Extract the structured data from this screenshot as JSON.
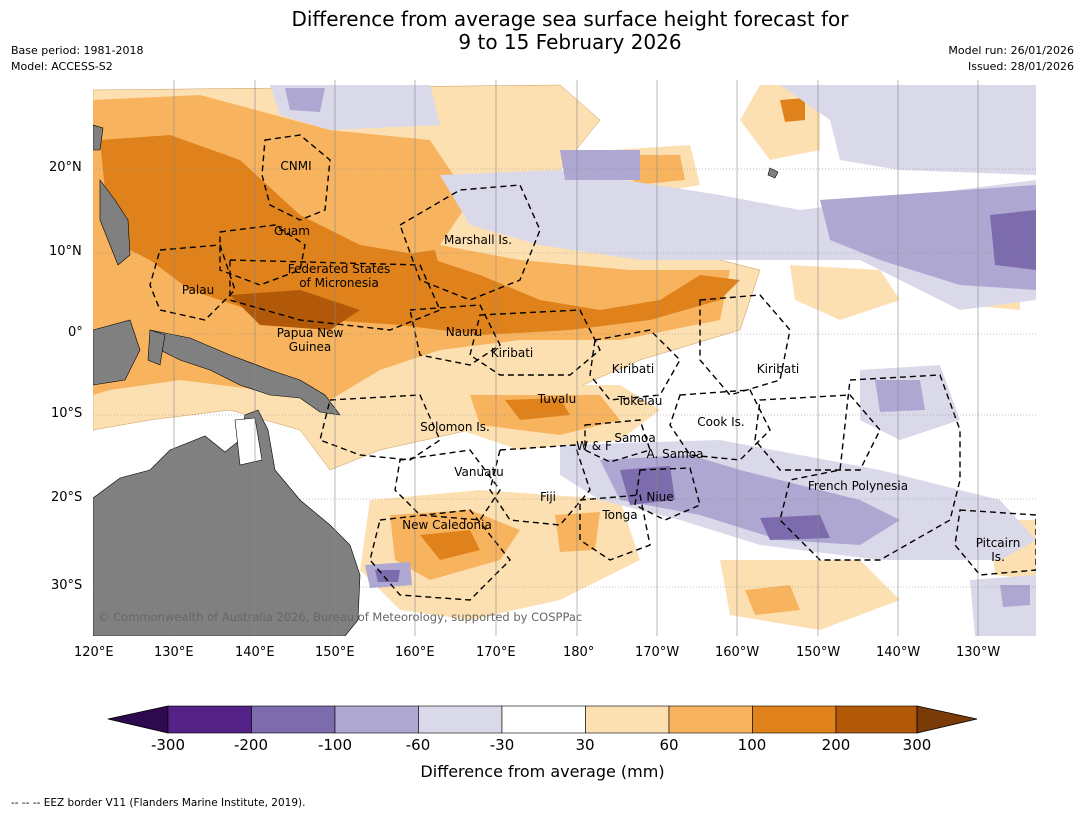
{
  "title_line1": "Difference from average sea surface height forecast for",
  "title_line2": "9 to 15 February 2026",
  "base_period": "Base period: 1981-2018",
  "model": "Model: ACCESS-S2",
  "model_run": "Model run: 26/01/2026",
  "issued": "Issued: 28/01/2026",
  "lat_labels": [
    "20°N",
    "10°N",
    "0°",
    "10°S",
    "20°S",
    "30°S"
  ],
  "lon_labels": [
    "120°E",
    "130°E",
    "140°E",
    "150°E",
    "160°E",
    "170°E",
    "180°",
    "170°W",
    "160°W",
    "150°W",
    "140°W",
    "130°W"
  ],
  "places": [
    {
      "name": "CNMI"
    },
    {
      "name": "Guam"
    },
    {
      "name": "Marshall Is."
    },
    {
      "name": "Federated States\nof Micronesia"
    },
    {
      "name": "Palau"
    },
    {
      "name": "Papua New\nGuinea"
    },
    {
      "name": "Nauru"
    },
    {
      "name": "Kiribati"
    },
    {
      "name": "Kiribati"
    },
    {
      "name": "Kiribati"
    },
    {
      "name": "Tuvalu"
    },
    {
      "name": "Tokelau"
    },
    {
      "name": "Solomon Is."
    },
    {
      "name": "Cook Is."
    },
    {
      "name": "Samoa"
    },
    {
      "name": "W & F"
    },
    {
      "name": "A. Samoa"
    },
    {
      "name": "Vanuatu"
    },
    {
      "name": "Fiji"
    },
    {
      "name": "Niue"
    },
    {
      "name": "French Polynesia"
    },
    {
      "name": "Tonga"
    },
    {
      "name": "New Caledonia"
    },
    {
      "name": "Pitcairn\nIs."
    }
  ],
  "copyright": "© Commonwealth of Australia 2026, Bureau of Meteorology, supported by COSPPac",
  "colorbar": {
    "ticks": [
      "-300",
      "-200",
      "-100",
      "-60",
      "-30",
      "30",
      "60",
      "100",
      "200",
      "300"
    ],
    "colors": [
      "#2d0a4d",
      "#542286",
      "#7c6bad",
      "#aea7d1",
      "#d9d9ea",
      "#ffffff",
      "#fde0b2",
      "#f8b35e",
      "#e0821b",
      "#b15908",
      "#7a3b09"
    ],
    "label": "Difference from average (mm)"
  },
  "footer": "--  --  -- EEZ border V11 (Flanders Marine Institute, 2019).",
  "chart_data": {
    "type": "heatmap",
    "title": "Difference from average sea surface height forecast for 9 to 15 February 2026",
    "units": "mm",
    "lon_range": [
      "120°E",
      "125°W"
    ],
    "lat_range": [
      "27°N",
      "35°S"
    ],
    "levels": [
      -300,
      -200,
      -100,
      -60,
      -30,
      30,
      60,
      100,
      200,
      300
    ],
    "summary_regions": [
      {
        "region": "Equatorial western Pacific (130°E–170°W, 0–10°N)",
        "approx_mm": "60 to 200"
      },
      {
        "region": "Central/eastern North Pacific (170°W–125°W, 5–25°N)",
        "approx_mm": "-30 to -200"
      },
      {
        "region": "South Pacific near Niue / French Polynesia",
        "approx_mm": "-60 to -200"
      },
      {
        "region": "Coral Sea / Solomon Is.",
        "approx_mm": "30 to 200"
      }
    ]
  }
}
